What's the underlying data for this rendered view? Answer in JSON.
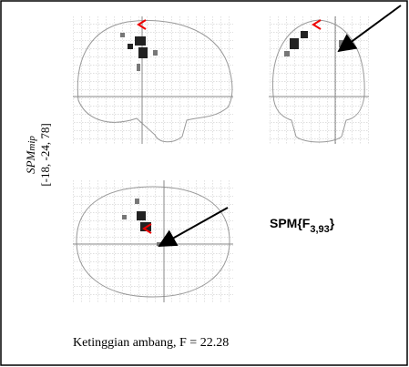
{
  "side_label": {
    "name": "SPM",
    "subscript": "mip",
    "coordinates": "[-18, -24, 78]"
  },
  "statistic": {
    "name": "SPM{F",
    "subscript": "3,93",
    "close": "}"
  },
  "caption": "Ketinggian ambang, F = 22.28"
}
